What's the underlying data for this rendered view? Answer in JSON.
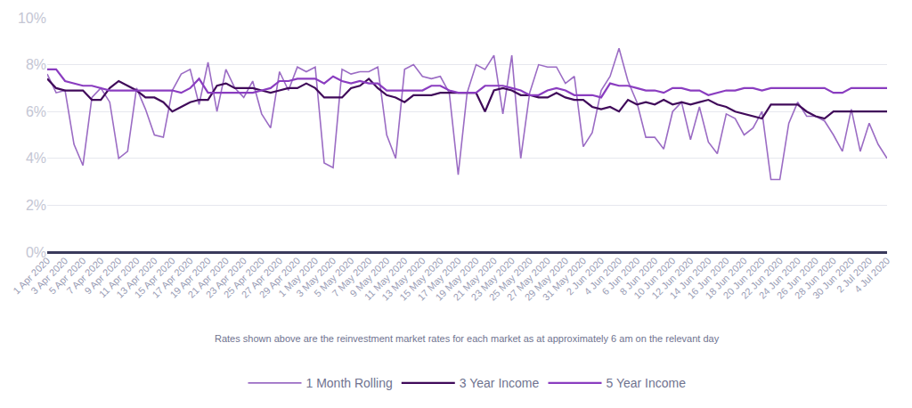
{
  "chart_data": {
    "type": "line",
    "annotations": [
      "Rates shown above are the reinvestment market rates for each market as at approximately 6 am on the relevant day"
    ],
    "categories": [
      "1 Apr 2020",
      null,
      "3 Apr 2020",
      null,
      "5 Apr 2020",
      null,
      "7 Apr 2020",
      null,
      "9 Apr 2020",
      null,
      "11 Apr 2020",
      null,
      "13 Apr 2020",
      null,
      "15 Apr 2020",
      null,
      "17 Apr 2020",
      null,
      "19 Apr 2020",
      null,
      "21 Apr 2020",
      null,
      "23 Apr 2020",
      null,
      "25 Apr 2020",
      null,
      "27 Apr 2020",
      null,
      "29 Apr 2020",
      null,
      "1 May 2020",
      null,
      "3 May 2020",
      null,
      "5 May 2020",
      null,
      "7 May 2020",
      null,
      "9 May 2020",
      null,
      "11 May 2020",
      null,
      "13 May 2020",
      null,
      "15 May 2020",
      null,
      "17 May 2020",
      null,
      "19 May 2020",
      null,
      "21 May 2020",
      null,
      "23 May 2020",
      null,
      "25 May 2020",
      null,
      "27 May 2020",
      null,
      "29 May 2020",
      null,
      "31 May 2020",
      null,
      "2 Jun 2020",
      null,
      "4 Jun 2020",
      null,
      "6 Jun 2020",
      null,
      "8 Jun 2020",
      null,
      "10 Jun 2020",
      null,
      "12 Jun 2020",
      null,
      "14 Jun 2020",
      null,
      "16 Jun 2020",
      null,
      "18 Jun 2020",
      null,
      "20 Jun 2020",
      null,
      "22 Jun 2020",
      null,
      "24 Jun 2020",
      null,
      "26 Jun 2020",
      null,
      "28 Jun 2020",
      null,
      "30 Jun 2020",
      null,
      "2 Jul 2020",
      null,
      "4 Jul 2020"
    ],
    "series": [
      {
        "name": "1 Month Rolling",
        "color": "#9b6cc4",
        "values": [
          7.6,
          6.8,
          6.9,
          4.6,
          3.7,
          6.6,
          7.0,
          6.4,
          4.0,
          4.3,
          7.0,
          6.1,
          5.0,
          4.9,
          6.9,
          7.6,
          7.8,
          6.3,
          8.1,
          6.0,
          7.8,
          7.0,
          6.6,
          7.3,
          5.9,
          5.3,
          7.7,
          6.9,
          7.9,
          7.7,
          7.9,
          3.8,
          3.6,
          7.8,
          7.6,
          7.7,
          7.7,
          7.9,
          5.0,
          4.0,
          7.8,
          8.0,
          7.5,
          7.4,
          7.5,
          6.8,
          3.3,
          6.8,
          8.0,
          7.8,
          8.4,
          5.9,
          8.4,
          4.0,
          6.8,
          8.0,
          7.9,
          7.9,
          7.2,
          7.5,
          4.5,
          5.1,
          6.9,
          7.5,
          8.7,
          7.3,
          6.4,
          4.9,
          4.9,
          4.4,
          6.0,
          6.4,
          4.8,
          6.2,
          4.7,
          4.2,
          5.9,
          5.7,
          5.0,
          5.3,
          6.0,
          3.1,
          3.1,
          5.5,
          6.4,
          5.8,
          5.8,
          5.6,
          5.0,
          4.3,
          6.1,
          4.3,
          5.5,
          4.6,
          4.0
        ]
      },
      {
        "name": "3 Year Income",
        "color": "#400a5a",
        "values": [
          7.4,
          7.0,
          6.9,
          6.9,
          6.9,
          6.5,
          6.5,
          7.0,
          7.3,
          7.1,
          6.9,
          6.6,
          6.6,
          6.4,
          6.0,
          6.2,
          6.4,
          6.5,
          6.5,
          7.1,
          7.2,
          7.0,
          7.0,
          7.0,
          6.9,
          6.8,
          6.9,
          7.0,
          7.0,
          7.2,
          7.0,
          6.6,
          6.6,
          6.6,
          7.0,
          7.1,
          7.4,
          7.0,
          6.7,
          6.6,
          6.4,
          6.7,
          6.7,
          6.7,
          6.8,
          6.8,
          6.8,
          6.8,
          6.8,
          6.0,
          6.9,
          7.0,
          6.9,
          6.7,
          6.7,
          6.6,
          6.6,
          6.8,
          6.6,
          6.5,
          6.5,
          6.2,
          6.1,
          6.2,
          6.0,
          6.5,
          6.3,
          6.4,
          6.3,
          6.5,
          6.3,
          6.4,
          6.3,
          6.4,
          6.5,
          6.3,
          6.2,
          6.0,
          5.9,
          5.8,
          5.7,
          6.3,
          6.3,
          6.3,
          6.3,
          6.0,
          5.8,
          5.7,
          6.0,
          6.0,
          6.0,
          6.0,
          6.0,
          6.0,
          6.0
        ]
      },
      {
        "name": "5 Year Income",
        "color": "#8a3dc0",
        "values": [
          7.8,
          7.8,
          7.3,
          7.2,
          7.1,
          7.1,
          7.0,
          6.9,
          6.9,
          6.9,
          6.9,
          6.9,
          6.9,
          6.9,
          6.9,
          6.8,
          7.0,
          7.4,
          6.8,
          6.8,
          6.8,
          6.8,
          6.8,
          6.8,
          6.9,
          7.0,
          7.3,
          7.3,
          7.4,
          7.4,
          7.4,
          7.2,
          7.5,
          7.3,
          7.2,
          7.3,
          7.2,
          7.2,
          6.9,
          6.9,
          6.9,
          6.9,
          6.9,
          7.1,
          7.1,
          6.9,
          6.8,
          6.8,
          6.8,
          7.1,
          7.1,
          7.1,
          7.0,
          6.9,
          6.7,
          6.7,
          6.9,
          7.0,
          6.9,
          6.7,
          6.7,
          6.7,
          6.6,
          7.2,
          7.1,
          7.1,
          7.0,
          6.9,
          6.9,
          6.8,
          7.0,
          7.0,
          6.9,
          6.9,
          6.7,
          6.8,
          6.9,
          6.9,
          7.0,
          7.0,
          6.9,
          7.0,
          7.0,
          7.0,
          7.0,
          7.0,
          7.0,
          7.0,
          6.8,
          6.8,
          7.0,
          7.0,
          7.0,
          7.0,
          7.0
        ]
      }
    ],
    "ylim": [
      0,
      10
    ],
    "yticks": [
      {
        "value": 0,
        "label": "0%"
      },
      {
        "value": 2,
        "label": "2%"
      },
      {
        "value": 4,
        "label": "4%"
      },
      {
        "value": 6,
        "label": "6%"
      },
      {
        "value": 8,
        "label": "8%"
      },
      {
        "value": 10,
        "label": "10%"
      }
    ],
    "grid": true,
    "legend": "bottom"
  }
}
